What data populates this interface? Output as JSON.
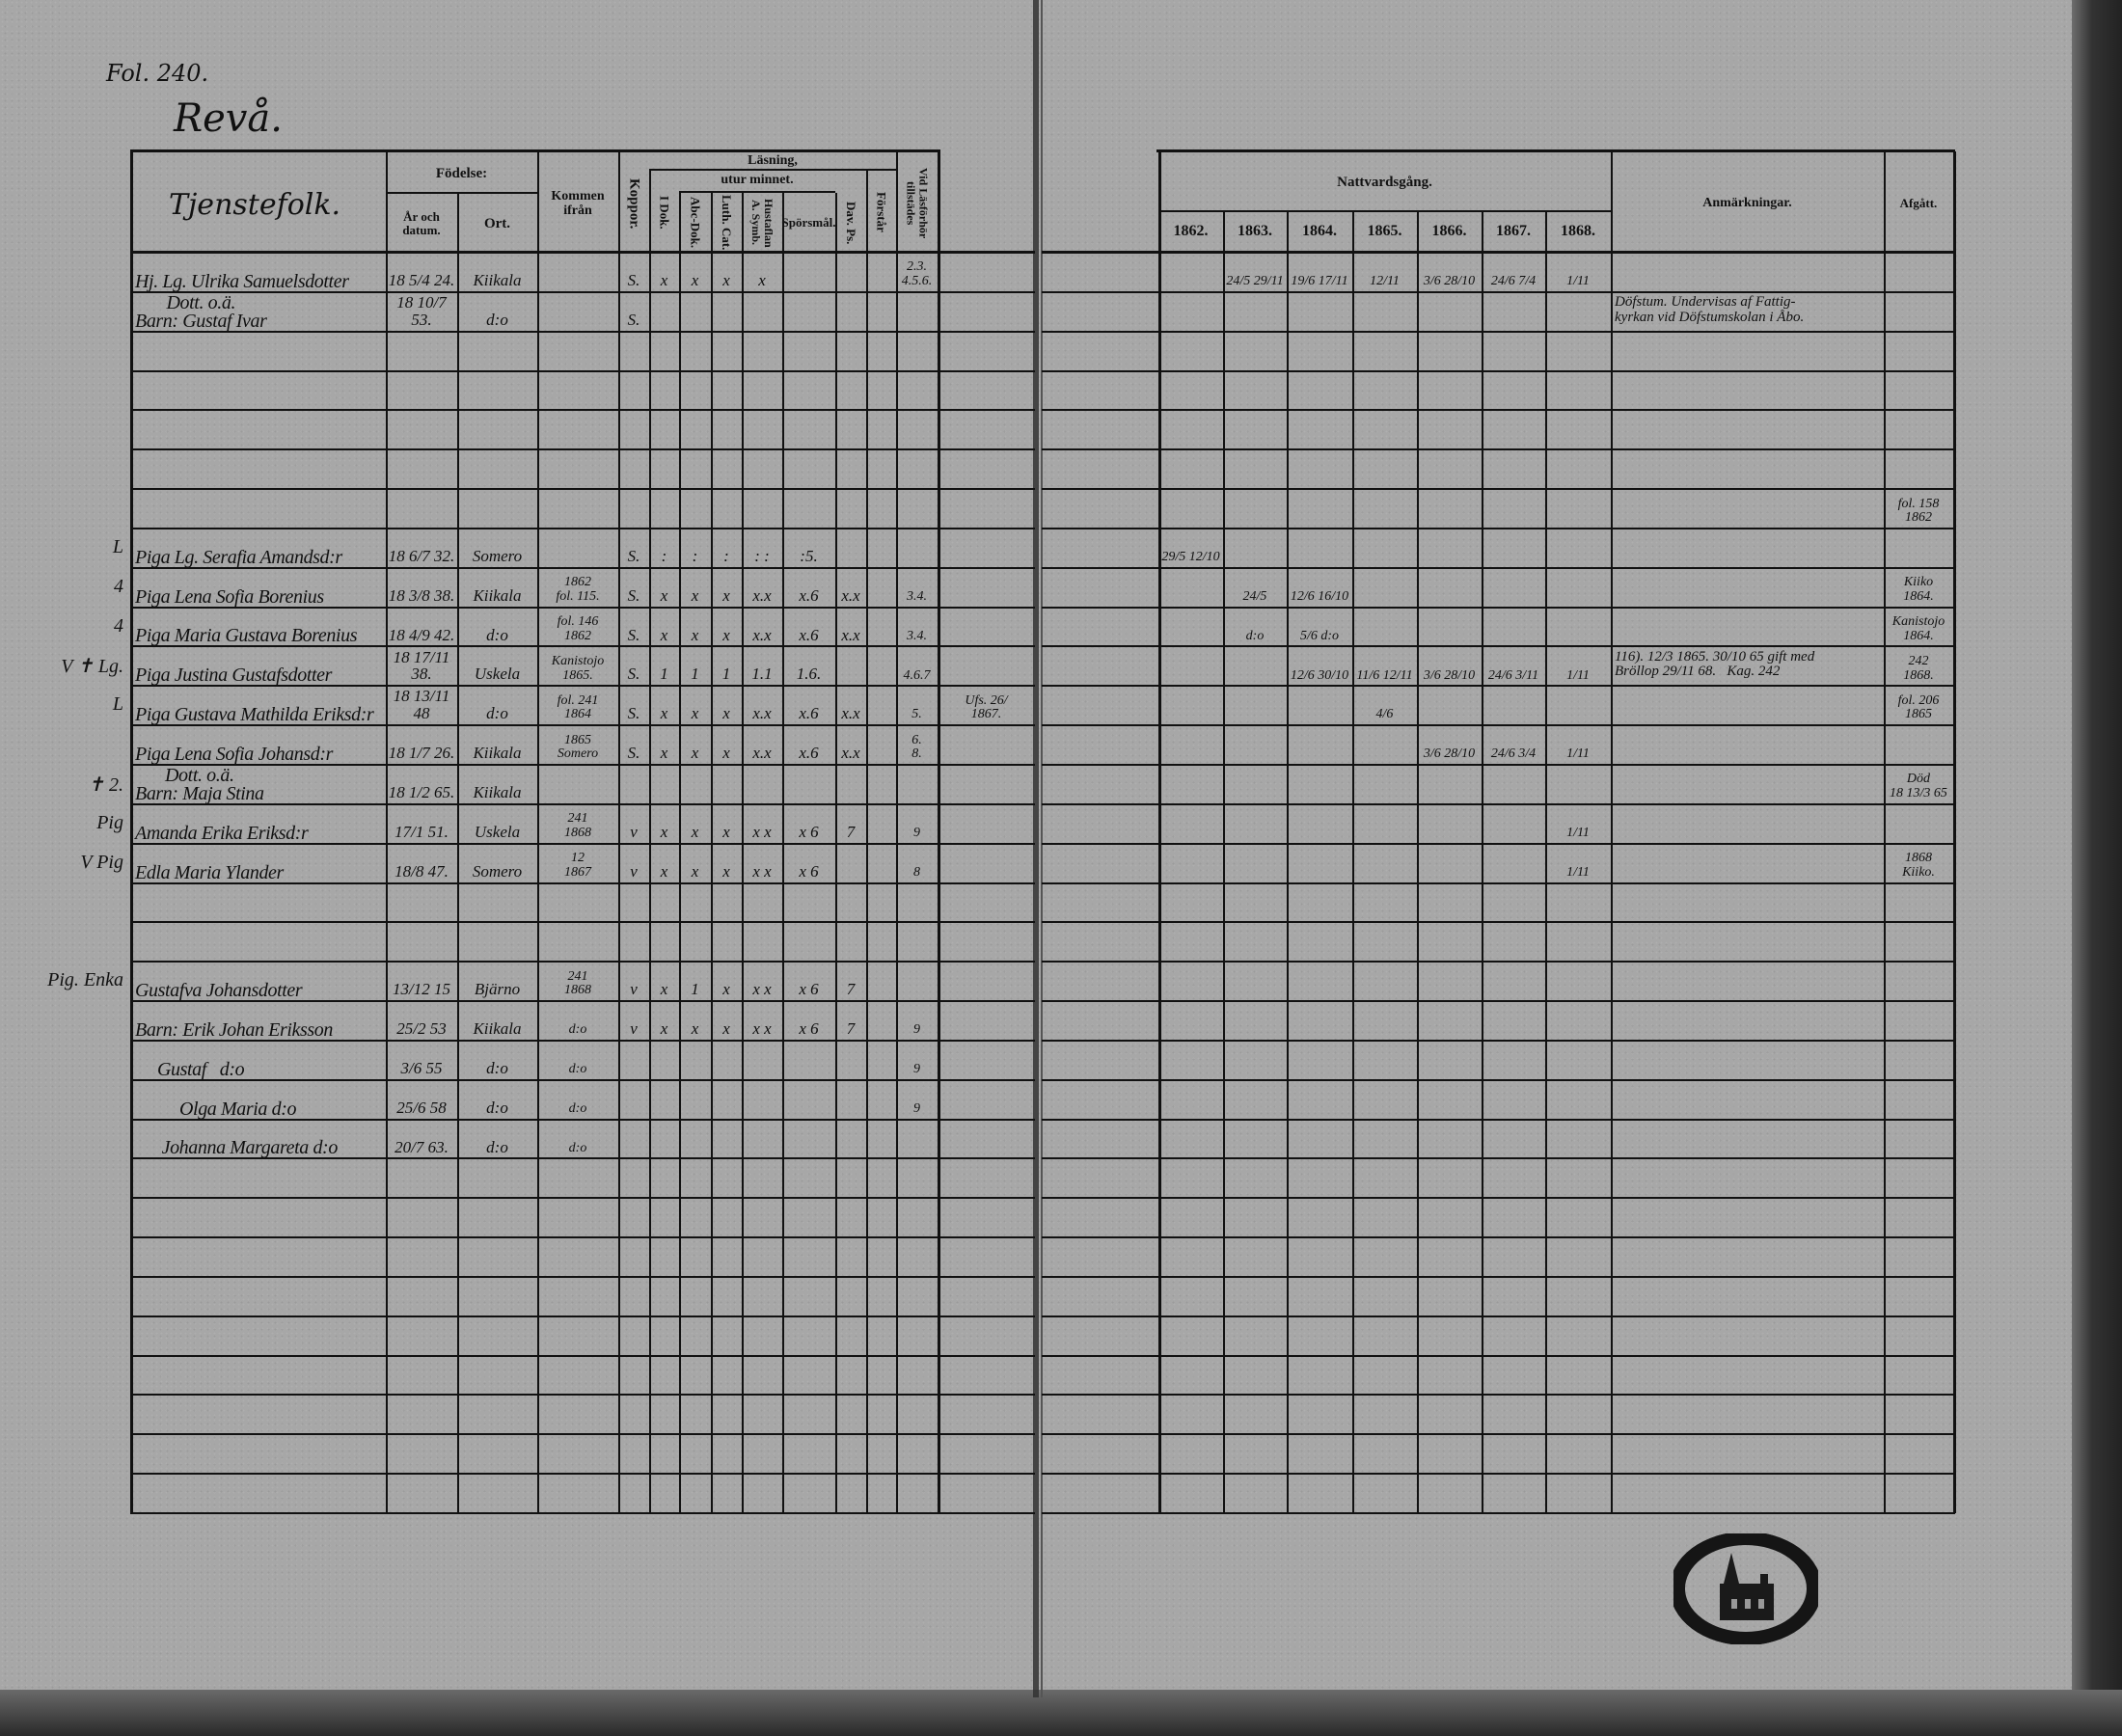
{
  "folio": "Fol. 240.",
  "village": "Revå.",
  "header": {
    "group": "Tjenstefolk.",
    "birth": "Födelse:",
    "birth_date": "År och datum.",
    "birth_place": "Ort.",
    "came_from": "Kommen ifrån",
    "smallpox": "Koppor.",
    "reading": "Läsning,",
    "by_heart": "utur minnet.",
    "dok": "I Dok.",
    "abc": "Abc-Dok.",
    "luth": "Luth. Cat.",
    "hust": "Hustaflan A. Symb.",
    "spors": "Spörsmål.",
    "dav": "Dav. Ps.",
    "forstar": "Förstår",
    "vid": "Vid Läsförhör tillstädes",
    "communion": "Nattvardsgång.",
    "years": [
      "1862.",
      "1863.",
      "1864.",
      "1865.",
      "1866.",
      "1867.",
      "1868."
    ],
    "notes": "Anmärkningar.",
    "left": "Afgått."
  },
  "rows": [
    {
      "name": "Hj. Lg. Ulrika Samuelsdotter",
      "born": "18 5/4 24.",
      "place": "Kiikala",
      "koppor": "S.",
      "dok": "x",
      "abc": "x",
      "luth": "x",
      "hust": "x",
      "vid": "2.3.\n4.5.6.",
      "c1863": "24/5 29/11",
      "c1864": "19/6 17/11",
      "c1865": "12/11",
      "c1866": "3/6 28/10",
      "c1867": "24/6 7/4",
      "c1868": "1/11"
    },
    {
      "name": "Dott. o.ä.\nBarn: Gustaf Ivar",
      "born": "18 10/7 53.",
      "place": "d:o",
      "koppor": "S.",
      "notes": "Döfstum. Undervisas af Fattig-\nkyrkan vid Döfstumskolan i Åbo."
    },
    {},
    {},
    {},
    {},
    {
      "afgatt": "fol. 158\n1862"
    },
    {
      "margin": "L",
      "name": "Piga Lg. Serafia Amandsd:r",
      "born": "18 6/7 32.",
      "place": "Somero",
      "koppor": "S.",
      "dok": ":",
      "abc": ":",
      "luth": ":",
      "hust": ": :",
      "spors": ":5.",
      "c1862": "29/5 12/10"
    },
    {
      "margin": "4",
      "name": "Piga Lena Sofia Borenius",
      "born": "18 3/8 38.",
      "place": "Kiikala",
      "from": "1862\nfol. 115.",
      "koppor": "S.",
      "dok": "x",
      "abc": "x",
      "luth": "x",
      "hust": "x.x",
      "spors": "x.6",
      "dav": "x.x",
      "vid": "3.4.",
      "c1863": "24/5",
      "c1864": "12/6 16/10",
      "afgatt": "Kiiko\n1864."
    },
    {
      "margin": "4",
      "name": "Piga Maria Gustava Borenius",
      "born": "18 4/9 42.",
      "place": "d:o",
      "from": "fol. 146\n1862",
      "koppor": "S.",
      "dok": "x",
      "abc": "x",
      "luth": "x",
      "hust": "x.x",
      "spors": "x.6",
      "dav": "x.x",
      "vid": "3.4.",
      "c1863": "d:o",
      "c1864": "5/6 d:o",
      "afgatt": "Kanistojo\n1864."
    },
    {
      "margin": "V ✝ Lg.",
      "name": "Piga Justina Gustafsdotter",
      "born": "18 17/11 38.",
      "place": "Uskela",
      "from": "Kanistojo\n1865.",
      "koppor": "S.",
      "dok": "1",
      "abc": "1",
      "luth": "1",
      "hust": "1.1",
      "spors": "1.6.",
      "vid": "4.6.7",
      "c1864": "12/6 30/10",
      "c1865": "11/6 12/11",
      "c1866": "3/6 28/10",
      "c1867": "24/6 3/11",
      "c1868": "1/11",
      "notes": "116). 12/3 1865. 30/10 65 gift med\nBröllop 29/11 68.   Kag. 242",
      "afgatt": "242\n1868."
    },
    {
      "margin": "L",
      "name": "Piga Gustava Mathilda Eriksd:r",
      "born": "18 13/11 48",
      "place": "d:o",
      "from": "fol. 241\n1864",
      "koppor": "S.",
      "dok": "x",
      "abc": "x",
      "luth": "x",
      "hust": "x.x",
      "spors": "x.6",
      "dav": "x.x",
      "vid": "5.",
      "extra": "Ufs. 26/\n1867.",
      "c1865": "4/6",
      "afgatt": "fol. 206\n1865"
    },
    {
      "name": "Piga Lena Sofia Johansd:r",
      "born": "18 1/7 26.",
      "place": "Kiikala",
      "from": "1865\nSomero",
      "koppor": "S.",
      "dok": "x",
      "abc": "x",
      "luth": "x",
      "hust": "x.x",
      "spors": "x.6",
      "dav": "x.x",
      "vid": "6.\n8.",
      "c1866": "3/6 28/10",
      "c1867": "24/6 3/4",
      "c1868": "1/11"
    },
    {
      "margin": "✝ 2.",
      "name": "Dott. o.ä.\nBarn: Maja Stina",
      "born": "18 1/2 65.",
      "place": "Kiikala",
      "afgatt": "Död\n18 13/3 65"
    },
    {
      "margin": "Pig",
      "name": "Amanda Erika Eriksd:r",
      "born": "17/1 51.",
      "place": "Uskela",
      "from": "241\n1868",
      "koppor": "v",
      "dok": "x",
      "abc": "x",
      "luth": "x",
      "hust": "x x",
      "spors": "x 6",
      "dav": "7",
      "vid": "9",
      "c1868": "1/11"
    },
    {
      "margin": "V Pig",
      "name": "Edla Maria Ylander",
      "born": "18/8 47.",
      "place": "Somero",
      "from": "12\n1867",
      "koppor": "v",
      "dok": "x",
      "abc": "x",
      "luth": "x",
      "hust": "x x",
      "spors": "x 6",
      "vid": "8",
      "c1868": "1/11",
      "afgatt": "1868\nKiiko."
    },
    {},
    {},
    {
      "margin": "Pig. Enka",
      "name": "Gustafva Johansdotter",
      "born": "13/12 15",
      "place": "Bjärno",
      "from": "241\n1868",
      "koppor": "v",
      "dok": "x",
      "abc": "1",
      "luth": "x",
      "hust": "x x",
      "spors": "x 6",
      "dav": "7"
    },
    {
      "name": "Barn: Erik Johan Eriksson",
      "born": "25/2 53",
      "place": "Kiikala",
      "from": "d:o",
      "koppor": "v",
      "dok": "x",
      "abc": "x",
      "luth": "x",
      "hust": "x x",
      "spors": "x 6",
      "dav": "7",
      "vid": "9"
    },
    {
      "name": "     Gustaf   d:o",
      "born": "3/6 55",
      "place": "d:o",
      "from": "d:o",
      "vid": "9"
    },
    {
      "name": "          Olga Maria d:o",
      "born": "25/6 58",
      "place": "d:o",
      "from": "d:o",
      "vid": "9"
    },
    {
      "name": "      Johanna Margareta d:o",
      "born": "20/7 63.",
      "place": "d:o",
      "from": "d:o"
    },
    {},
    {},
    {},
    {},
    {},
    {},
    {},
    {},
    {}
  ],
  "colors": {
    "paper": "#a7a7a7",
    "ink": "#111111",
    "edge": "#2a2a2a"
  }
}
